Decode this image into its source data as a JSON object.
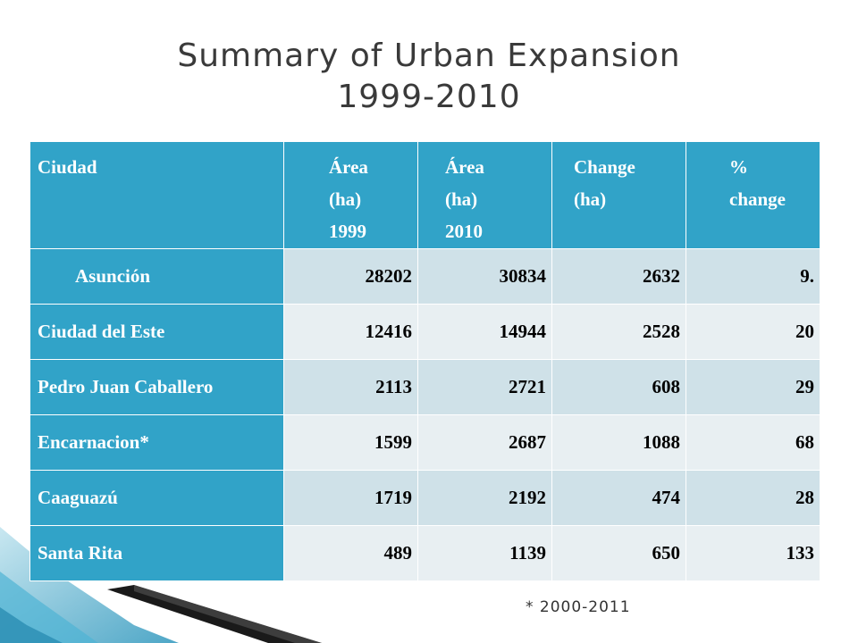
{
  "title": {
    "line1": "Summary of Urban Expansion",
    "line2": "1999-2010"
  },
  "table": {
    "headers": [
      [
        "Ciudad"
      ],
      [
        "Área",
        "(ha)",
        "1999"
      ],
      [
        "Área",
        "(ha)",
        "2010"
      ],
      [
        "Change",
        "(ha)"
      ],
      [
        "%",
        "change"
      ]
    ],
    "rows": [
      [
        "Asunción",
        "28202",
        "30834",
        "2632",
        "9."
      ],
      [
        "Ciudad del Este",
        "12416",
        "14944",
        "2528",
        "20"
      ],
      [
        "Pedro Juan Caballero",
        "2113",
        "2721",
        "608",
        "29"
      ],
      [
        "Encarnacion*",
        "1599",
        "2687",
        "1088",
        "68"
      ],
      [
        "Caaguazú",
        "1719",
        "2192",
        "474",
        "28"
      ],
      [
        "Santa Rita",
        "489",
        "1139",
        "650",
        "133"
      ]
    ]
  },
  "footnote": "* 2000-2011",
  "colors": {
    "header_bg": "#31a3c8",
    "row_odd": "#cfe1e8",
    "row_even": "#e8eff2",
    "accent_dark": "#1a1a1a"
  }
}
